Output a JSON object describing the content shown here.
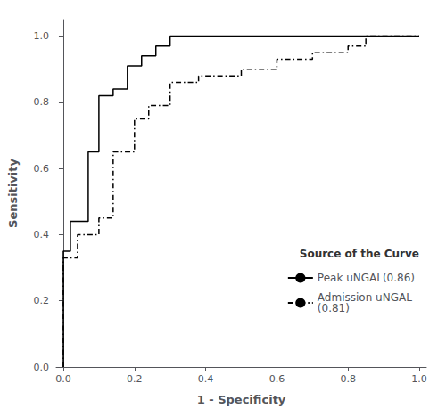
{
  "chart_data": {
    "type": "line",
    "xlabel": "1 - Specificity",
    "ylabel": "Sensitivity",
    "xlim": [
      -0.02,
      1.02
    ],
    "ylim": [
      0.0,
      1.05
    ],
    "xticks": [
      {
        "value": 0.0,
        "label": "0.0"
      },
      0.2,
      0.4,
      0.6,
      0.8,
      {
        "value": 1.0,
        "label": "1.0"
      }
    ],
    "yticks": [
      {
        "value": 0.0,
        "label": "0.0"
      },
      0.2,
      0.4,
      0.6,
      0.8,
      {
        "value": 1.0,
        "label": "1.0"
      }
    ],
    "grid": false,
    "legend": "lower right",
    "legend_title": "Source of the Curve",
    "series": [
      {
        "name": "Peak uNGAL(0.86)",
        "color": "#000000",
        "line_style": "solid",
        "x": [
          0.0,
          0.0,
          0.02,
          0.02,
          0.07,
          0.07,
          0.1,
          0.1,
          0.14,
          0.14,
          0.18,
          0.18,
          0.22,
          0.22,
          0.26,
          0.26,
          0.3,
          0.3,
          0.35,
          0.35,
          0.4,
          0.4,
          1.0
        ],
        "values": [
          0.0,
          0.35,
          0.35,
          0.44,
          0.44,
          0.65,
          0.65,
          0.82,
          0.82,
          0.84,
          0.84,
          0.91,
          0.91,
          0.94,
          0.94,
          0.97,
          0.97,
          1.0,
          1.0,
          1.0,
          1.0,
          1.0,
          1.0
        ]
      },
      {
        "name": "Admission uNGAL\n(0.81)",
        "color": "#000000",
        "line_style": "dashdot",
        "x": [
          0.0,
          0.0,
          0.04,
          0.04,
          0.1,
          0.1,
          0.14,
          0.14,
          0.2,
          0.2,
          0.24,
          0.24,
          0.3,
          0.3,
          0.38,
          0.38,
          0.5,
          0.5,
          0.6,
          0.6,
          0.7,
          0.7,
          0.8,
          0.8,
          0.85,
          0.85,
          1.0
        ],
        "values": [
          0.0,
          0.33,
          0.33,
          0.4,
          0.4,
          0.45,
          0.45,
          0.65,
          0.65,
          0.75,
          0.75,
          0.79,
          0.79,
          0.86,
          0.86,
          0.88,
          0.88,
          0.9,
          0.9,
          0.93,
          0.93,
          0.95,
          0.95,
          0.97,
          0.97,
          1.0,
          1.0
        ]
      }
    ]
  }
}
